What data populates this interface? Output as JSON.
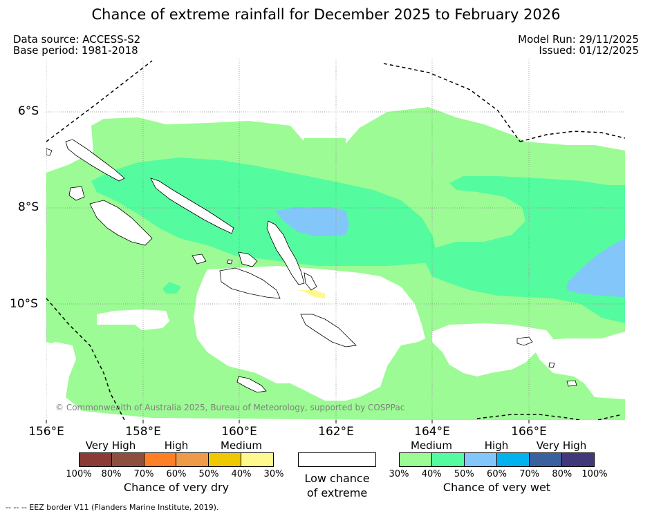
{
  "title": "Chance of extreme rainfall for December 2025 to February 2026",
  "meta": {
    "data_source": "Data source: ACCESS-S2",
    "base_period": "Base period: 1981-2018",
    "model_run": "Model Run: 29/11/2025",
    "issued": "Issued: 01/12/2025"
  },
  "axes": {
    "lat_labels": [
      "6°S",
      "8°S",
      "10°S"
    ],
    "lon_labels": [
      "156°E",
      "158°E",
      "160°E",
      "162°E",
      "164°E",
      "166°E"
    ]
  },
  "copyright": "© Commonwealth of Australia 2025, Bureau of Meteorology, supported by COSPPac",
  "legend": {
    "dry": {
      "headings": [
        "Very High",
        "High",
        "Medium"
      ],
      "ticks": [
        "100%",
        "80%",
        "70%",
        "60%",
        "50%",
        "40%",
        "30%"
      ],
      "colors": [
        "#8b3a36",
        "#8e4e3e",
        "#ff7f27",
        "#ef9a48",
        "#f0c800",
        "#fff88e"
      ],
      "title": "Chance of very dry"
    },
    "low": {
      "line1": "Low chance",
      "line2": "of extreme",
      "color": "#ffffff"
    },
    "wet": {
      "headings": [
        "Medium",
        "High",
        "Very High"
      ],
      "ticks": [
        "30%",
        "40%",
        "50%",
        "60%",
        "70%",
        "80%",
        "100%"
      ],
      "colors": [
        "#9cfb94",
        "#55fb9f",
        "#83c6fa",
        "#00b2ee",
        "#3a609d",
        "#41387a"
      ],
      "title": "Chance of very wet"
    }
  },
  "footnote": "--  --  -- EEZ border V11 (Flanders Marine Institute, 2019)."
}
